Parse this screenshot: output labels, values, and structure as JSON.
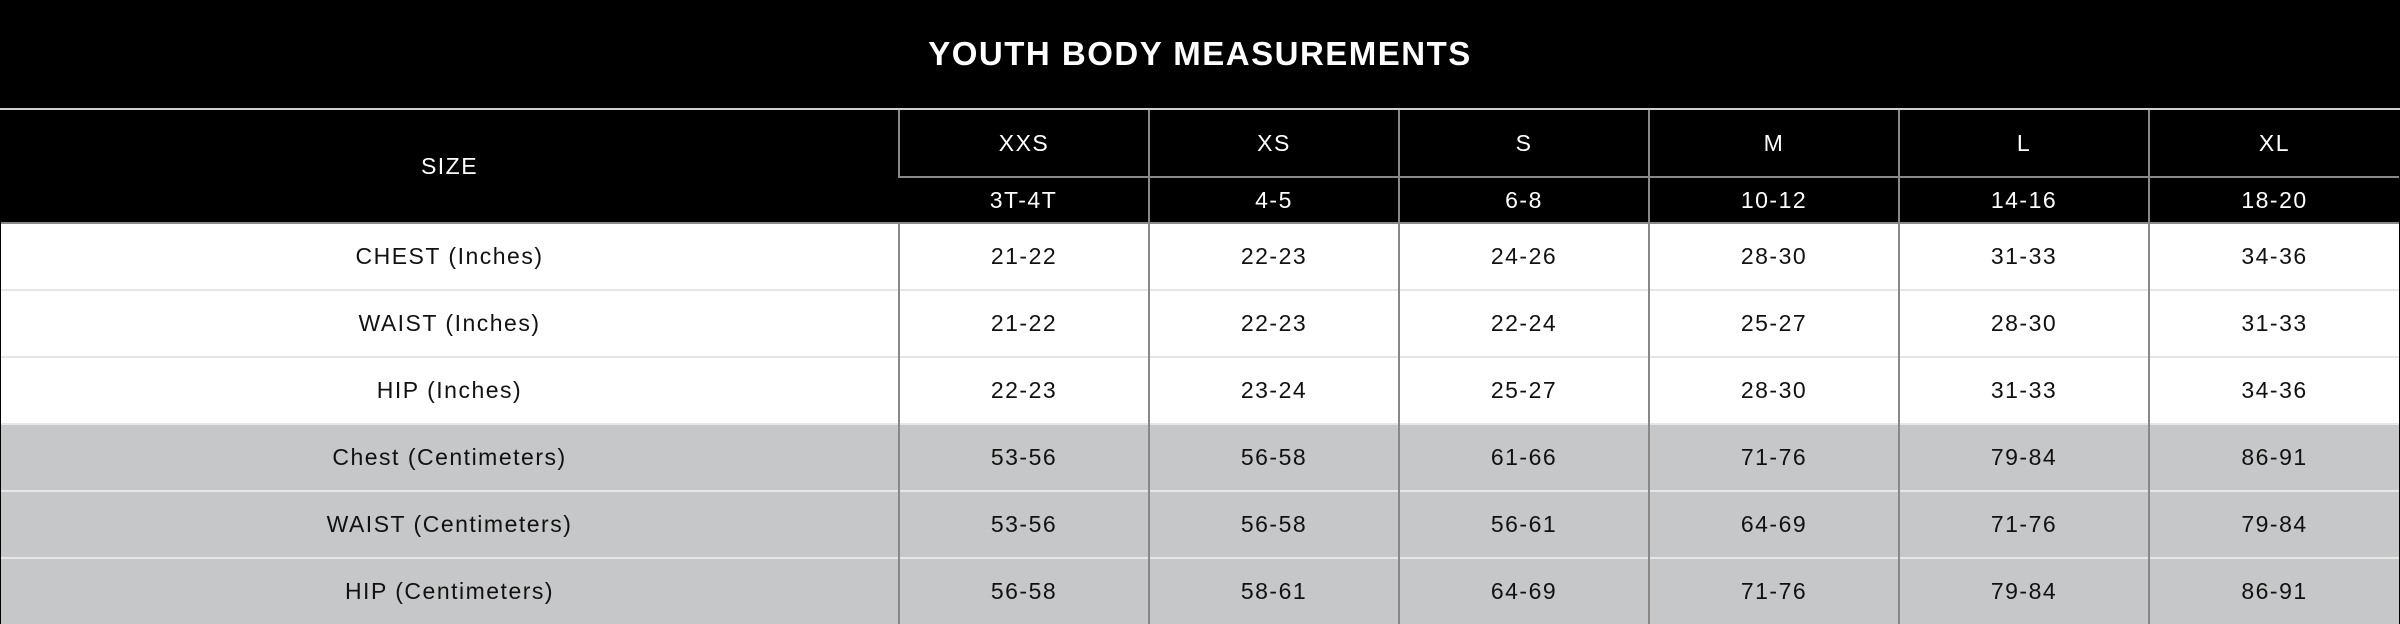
{
  "title": "YOUTH BODY MEASUREMENTS",
  "header": {
    "size_label": "SIZE",
    "sizes": [
      "XXS",
      "XS",
      "S",
      "M",
      "L",
      "XL"
    ],
    "ages": [
      "3T-4T",
      "4-5",
      "6-8",
      "10-12",
      "14-16",
      "18-20"
    ]
  },
  "rows": [
    {
      "label": "CHEST (Inches)",
      "values": [
        "21-22",
        "22-23",
        "24-26",
        "28-30",
        "31-33",
        "34-36"
      ]
    },
    {
      "label": "WAIST (Inches)",
      "values": [
        "21-22",
        "22-23",
        "22-24",
        "25-27",
        "28-30",
        "31-33"
      ]
    },
    {
      "label": "HIP (Inches)",
      "values": [
        "22-23",
        "23-24",
        "25-27",
        "28-30",
        "31-33",
        "34-36"
      ]
    },
    {
      "label": "Chest (Centimeters)",
      "values": [
        "53-56",
        "56-58",
        "61-66",
        "71-76",
        "79-84",
        "86-91"
      ]
    },
    {
      "label": "WAIST (Centimeters)",
      "values": [
        "53-56",
        "56-58",
        "56-61",
        "64-69",
        "71-76",
        "79-84"
      ]
    },
    {
      "label": "HIP (Centimeters)",
      "values": [
        "56-58",
        "58-61",
        "64-69",
        "71-76",
        "79-84",
        "86-91"
      ]
    }
  ],
  "colors": {
    "header_bg": "#000000",
    "inches_bg": "#ffffff",
    "centimeters_bg": "#c6c7c9"
  }
}
